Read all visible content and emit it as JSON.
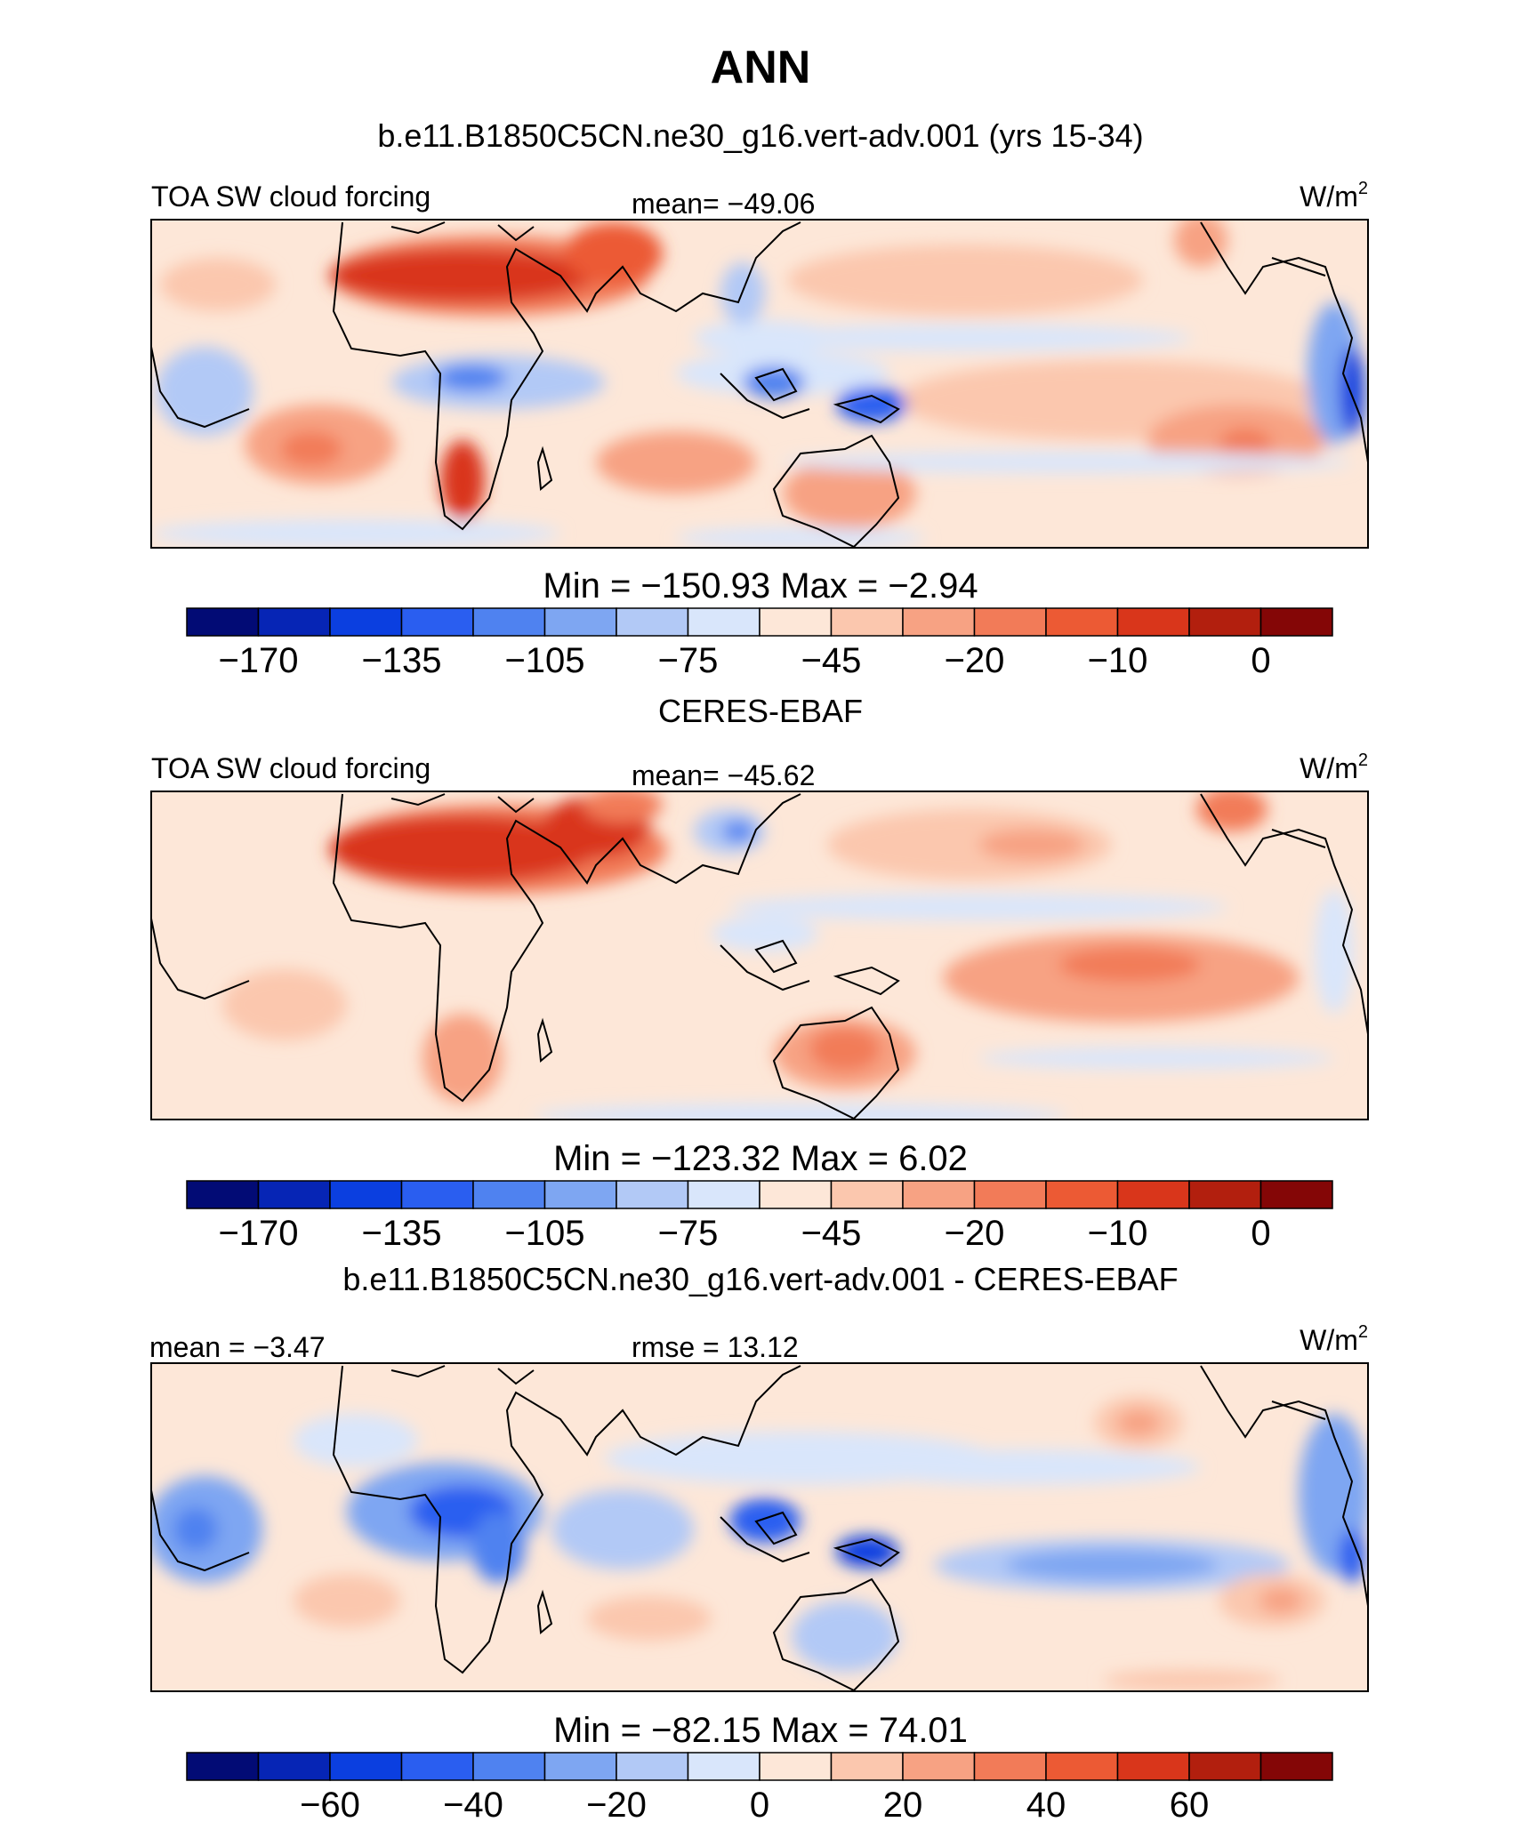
{
  "page": {
    "title": "ANN",
    "subtitle": "b.e11.B1850C5CN.ne30_g16.vert-adv.001 (yrs 15-34)"
  },
  "chart_data": [
    {
      "type": "heatmap",
      "id": "model",
      "title": "b.e11.B1850C5CN.ne30_g16.vert-adv.001 (yrs 15-34)",
      "left_label": "TOA SW cloud forcing",
      "center_label": "mean=  −49.06",
      "unit": "W/m",
      "unit_sup": "2",
      "stats": "Min  =  −150.93  Max  =    −2.94",
      "colorbar_ticks": [
        "−170",
        "−135",
        "−105",
        "−75",
        "−45",
        "−20",
        "−10",
        "0"
      ],
      "colors": [
        "#020b75",
        "#0625b5",
        "#0b3fe0",
        "#2a5ef0",
        "#4f82f0",
        "#7ea6f2",
        "#b2c9f6",
        "#d9e6fb",
        "#fde7d8",
        "#fbc7ae",
        "#f7a283",
        "#f27b58",
        "#ec5a34",
        "#d9361b",
        "#b21f0e",
        "#840606"
      ]
    },
    {
      "type": "heatmap",
      "id": "obs",
      "title": "CERES-EBAF",
      "left_label": "TOA SW cloud forcing",
      "center_label": "mean=  −45.62",
      "unit": "W/m",
      "unit_sup": "2",
      "stats": "Min  =  −123.32  Max  =     6.02",
      "colorbar_ticks": [
        "−170",
        "−135",
        "−105",
        "−75",
        "−45",
        "−20",
        "−10",
        "0"
      ],
      "colors": [
        "#020b75",
        "#0625b5",
        "#0b3fe0",
        "#2a5ef0",
        "#4f82f0",
        "#7ea6f2",
        "#b2c9f6",
        "#d9e6fb",
        "#fde7d8",
        "#fbc7ae",
        "#f7a283",
        "#f27b58",
        "#ec5a34",
        "#d9361b",
        "#b21f0e",
        "#840606"
      ]
    },
    {
      "type": "heatmap",
      "id": "diff",
      "title": "b.e11.B1850C5CN.ne30_g16.vert-adv.001 - CERES-EBAF",
      "left_label": "mean  =   −3.47",
      "center_label": "rmse  =   13.12",
      "unit": "W/m",
      "unit_sup": "2",
      "stats": "Min  =  −82.15  Max  =   74.01",
      "colorbar_ticks": [
        "−60",
        "−40",
        "−20",
        "0",
        "20",
        "40",
        "60"
      ],
      "colors": [
        "#020b75",
        "#0625b5",
        "#0b3fe0",
        "#2a5ef0",
        "#4f82f0",
        "#7ea6f2",
        "#b2c9f6",
        "#d9e6fb",
        "#fde7d8",
        "#fbc7ae",
        "#f7a283",
        "#f27b58",
        "#ec5a34",
        "#d9361b",
        "#b21f0e",
        "#840606"
      ]
    }
  ]
}
